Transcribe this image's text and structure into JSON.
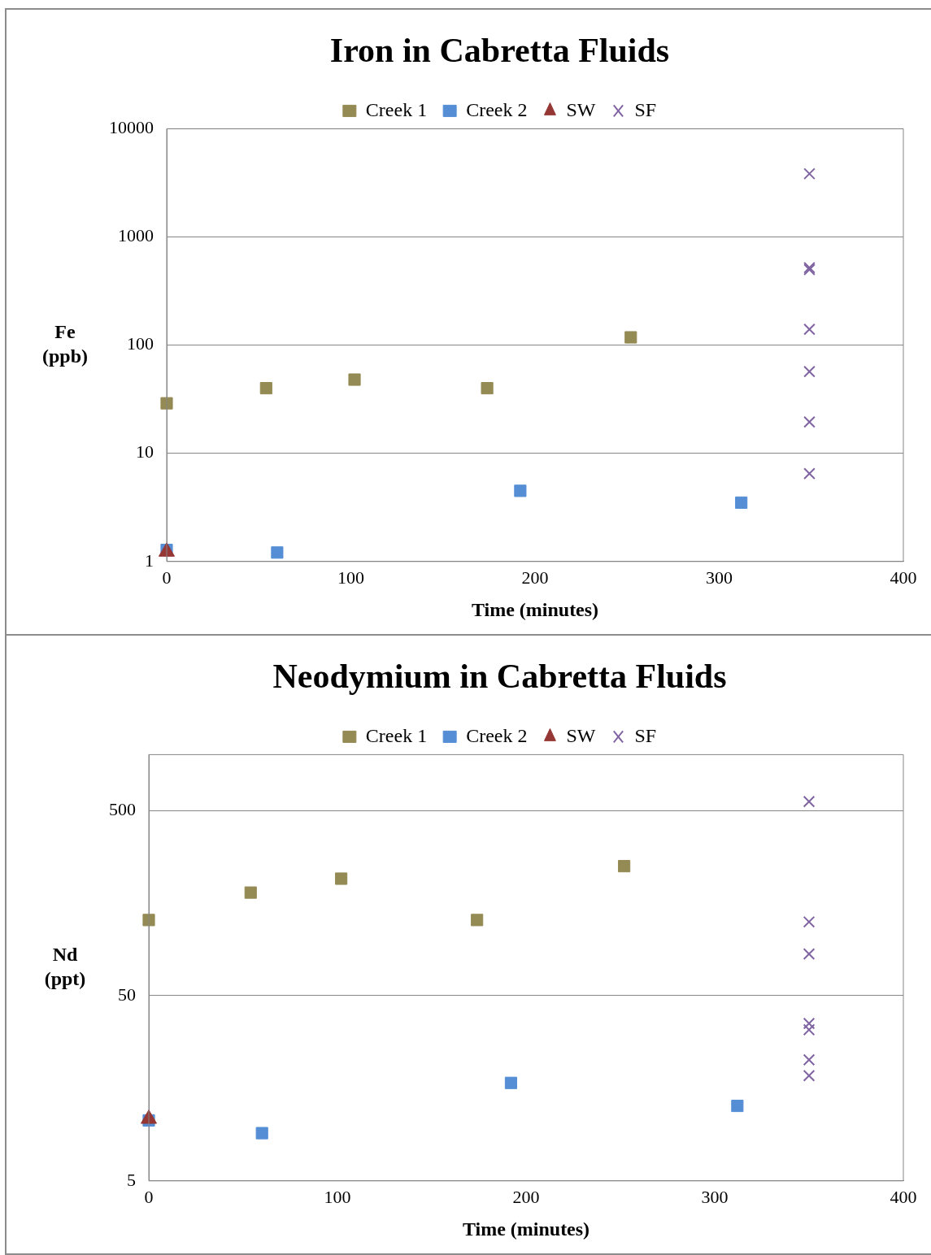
{
  "chart_data": [
    {
      "type": "scatter",
      "title": "Iron in Cabretta Fluids",
      "xlabel": "Time (minutes)",
      "ylabel": "Fe (ppb)",
      "log": "y",
      "grid": "y",
      "legend": "top",
      "xlim": [
        0,
        400
      ],
      "xticks": [
        0,
        100,
        200,
        300,
        400
      ],
      "ylim": [
        1,
        10000
      ],
      "yticks": [
        1,
        10,
        100,
        1000,
        10000
      ],
      "series": [
        {
          "name": "Creek 1",
          "color": "#948a54",
          "marker": "square",
          "x": [
            0,
            54,
            102,
            174,
            252
          ],
          "values": [
            29,
            40,
            48,
            40,
            118
          ]
        },
        {
          "name": "Creek 2",
          "color": "#558ed5",
          "marker": "square",
          "x": [
            0,
            60,
            192,
            312
          ],
          "values": [
            1.28,
            1.21,
            4.5,
            3.5
          ]
        },
        {
          "name": "SW",
          "color": "#953735",
          "marker": "triangle",
          "x": [
            0
          ],
          "values": [
            1.23
          ]
        },
        {
          "name": "SF",
          "color": "#8064a2",
          "marker": "cross",
          "x": [
            349,
            349,
            349,
            349,
            349,
            349,
            349
          ],
          "values": [
            3840,
            500,
            520,
            140,
            57,
            19.5,
            6.5
          ]
        }
      ]
    },
    {
      "type": "scatter",
      "title": "Neodymium in Cabretta Fluids",
      "xlabel": "Time (minutes)",
      "ylabel": "Nd (ppt)",
      "log": "y",
      "grid": "y",
      "legend": "top",
      "xlim": [
        0,
        400
      ],
      "xticks": [
        0,
        100,
        200,
        300,
        400
      ],
      "ylim": [
        5,
        1000
      ],
      "yticks": [
        5,
        50,
        500
      ],
      "series": [
        {
          "name": "Creek 1",
          "color": "#948a54",
          "marker": "square",
          "x": [
            0,
            54,
            102,
            174,
            252
          ],
          "values": [
            128,
            180,
            214,
            128,
            250
          ]
        },
        {
          "name": "Creek 2",
          "color": "#558ed5",
          "marker": "square",
          "x": [
            0,
            60,
            192,
            312
          ],
          "values": [
            10.6,
            9.05,
            16.9,
            12.7
          ]
        },
        {
          "name": "SW",
          "color": "#953735",
          "marker": "triangle",
          "x": [
            0
          ],
          "values": [
            10.8
          ]
        },
        {
          "name": "SF",
          "color": "#8064a2",
          "marker": "cross",
          "x": [
            350,
            350,
            350,
            350,
            350,
            350,
            350
          ],
          "values": [
            558,
            125,
            84,
            35.4,
            32.7,
            22.5,
            18.5
          ]
        }
      ]
    }
  ]
}
